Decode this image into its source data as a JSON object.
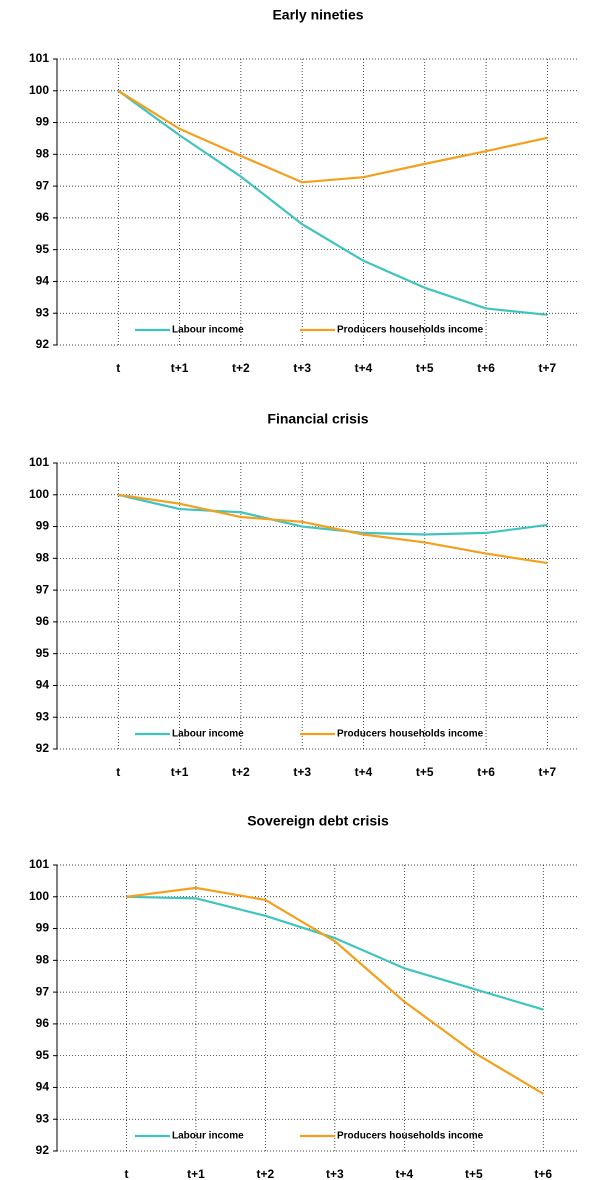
{
  "chart_data": [
    {
      "type": "line",
      "title": "Early nineties",
      "categories": [
        "t",
        "t+1",
        "t+2",
        "t+3",
        "t+4",
        "t+5",
        "t+6",
        "t+7"
      ],
      "series": [
        {
          "name": "Labour income",
          "color": "#40c4c0",
          "values": [
            100,
            98.6,
            97.3,
            95.8,
            94.65,
            93.8,
            93.15,
            92.95
          ]
        },
        {
          "name": "Producers households income",
          "color": "#f2a01e",
          "values": [
            100,
            98.8,
            97.95,
            97.12,
            97.28,
            97.7,
            98.1,
            98.52
          ]
        }
      ],
      "ylim": [
        92,
        101
      ],
      "yticks": [
        92,
        93,
        94,
        95,
        96,
        97,
        98,
        99,
        100,
        101
      ],
      "grid": true,
      "legend": "bottom"
    },
    {
      "type": "line",
      "title": "Financial crisis",
      "categories": [
        "t",
        "t+1",
        "t+2",
        "t+3",
        "t+4",
        "t+5",
        "t+6",
        "t+7"
      ],
      "series": [
        {
          "name": "Labour income",
          "color": "#40c4c0",
          "values": [
            100,
            99.55,
            99.45,
            99.0,
            98.8,
            98.75,
            98.8,
            99.05
          ]
        },
        {
          "name": "Producers households income",
          "color": "#f2a01e",
          "values": [
            100,
            99.72,
            99.3,
            99.15,
            98.75,
            98.5,
            98.15,
            97.85
          ]
        }
      ],
      "ylim": [
        92,
        101
      ],
      "yticks": [
        92,
        93,
        94,
        95,
        96,
        97,
        98,
        99,
        100,
        101
      ],
      "grid": true,
      "legend": "bottom"
    },
    {
      "type": "line",
      "title": "Sovereign debt crisis",
      "categories": [
        "t",
        "t+1",
        "t+2",
        "t+3",
        "t+4",
        "t+5",
        "t+6"
      ],
      "series": [
        {
          "name": "Labour income",
          "color": "#40c4c0",
          "values": [
            100,
            99.95,
            99.4,
            98.7,
            97.75,
            97.1,
            96.45
          ]
        },
        {
          "name": "Producers households income",
          "color": "#f2a01e",
          "values": [
            100,
            100.28,
            99.9,
            98.6,
            96.7,
            95.1,
            93.8
          ]
        }
      ],
      "ylim": [
        92,
        101
      ],
      "yticks": [
        92,
        93,
        94,
        95,
        96,
        97,
        98,
        99,
        100,
        101
      ],
      "grid": true,
      "legend": "bottom"
    }
  ]
}
